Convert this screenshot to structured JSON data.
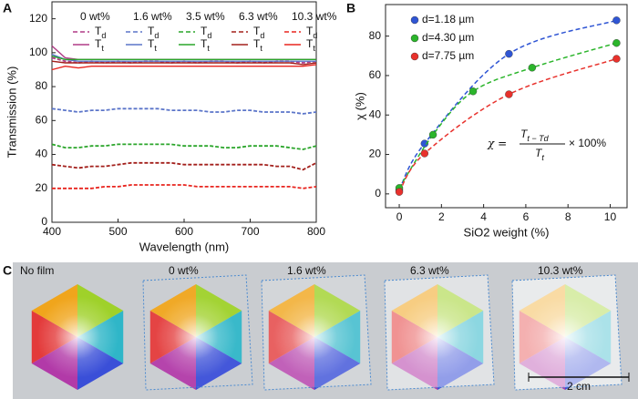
{
  "chart_data": [
    {
      "type": "line",
      "panel": "A",
      "x_label": "Wavelength (nm)",
      "y_label": "Transmission (%)",
      "x": [
        400,
        420,
        440,
        460,
        480,
        500,
        520,
        540,
        560,
        580,
        600,
        620,
        640,
        660,
        680,
        700,
        720,
        740,
        760,
        780,
        800
      ],
      "xlim": [
        400,
        800
      ],
      "xticks": [
        400,
        500,
        600,
        700,
        800
      ],
      "ylim": [
        0,
        130
      ],
      "yticks": [
        0,
        20,
        40,
        60,
        80,
        100,
        120
      ],
      "groups": [
        "0 wt%",
        "1.6 wt%",
        "3.5 wt%",
        "6.3 wt%",
        "10.3 wt%"
      ],
      "series": [
        {
          "name": "Td",
          "color": "#b03b87",
          "dashed": true,
          "values": [
            97,
            95,
            94,
            95,
            94,
            95,
            94,
            95,
            95,
            94,
            95,
            94,
            95,
            95,
            94,
            95,
            94,
            95,
            95,
            94,
            95
          ]
        },
        {
          "name": "Tt",
          "color": "#b03b87",
          "dashed": false,
          "values": [
            104,
            97,
            96,
            96,
            96,
            96,
            96,
            96,
            96,
            96,
            96,
            96,
            96,
            96,
            96,
            96,
            96,
            96,
            96,
            96,
            96
          ]
        },
        {
          "name": "Td",
          "color": "#5b75c9",
          "dashed": true,
          "values": [
            67,
            66,
            65,
            66,
            66,
            67,
            67,
            67,
            67,
            66,
            66,
            66,
            65,
            65,
            66,
            66,
            65,
            65,
            65,
            64,
            65
          ]
        },
        {
          "name": "Tt",
          "color": "#5b75c9",
          "dashed": false,
          "values": [
            99,
            96,
            95,
            95,
            95,
            95,
            95,
            95,
            95,
            95,
            95,
            95,
            95,
            95,
            95,
            95,
            95,
            95,
            95,
            95,
            95
          ]
        },
        {
          "name": "Td",
          "color": "#2aa52a",
          "dashed": true,
          "values": [
            46,
            44,
            44,
            45,
            45,
            46,
            46,
            46,
            46,
            46,
            45,
            45,
            45,
            44,
            44,
            45,
            45,
            45,
            44,
            43,
            45
          ]
        },
        {
          "name": "Tt",
          "color": "#2aa52a",
          "dashed": false,
          "values": [
            98,
            96,
            96,
            96,
            96,
            96,
            96,
            96,
            96,
            96,
            96,
            96,
            96,
            96,
            96,
            96,
            96,
            96,
            96,
            96,
            96
          ]
        },
        {
          "name": "Td",
          "color": "#a3201c",
          "dashed": true,
          "values": [
            34,
            33,
            32,
            33,
            33,
            34,
            35,
            35,
            35,
            35,
            34,
            34,
            34,
            34,
            34,
            34,
            34,
            33,
            33,
            31,
            35
          ]
        },
        {
          "name": "Tt",
          "color": "#a3201c",
          "dashed": false,
          "values": [
            95,
            94,
            94,
            94,
            94,
            94,
            94,
            94,
            94,
            94,
            94,
            94,
            94,
            94,
            94,
            94,
            94,
            94,
            94,
            93,
            94
          ]
        },
        {
          "name": "Td",
          "color": "#e8251f",
          "dashed": true,
          "values": [
            20,
            20,
            20,
            20,
            21,
            21,
            22,
            22,
            22,
            22,
            22,
            21,
            21,
            21,
            21,
            21,
            21,
            21,
            21,
            20,
            21
          ]
        },
        {
          "name": "Tt",
          "color": "#e8251f",
          "dashed": false,
          "values": [
            90,
            92,
            91,
            92,
            92,
            92,
            92,
            92,
            92,
            92,
            92,
            92,
            92,
            92,
            92,
            92,
            92,
            92,
            92,
            92,
            93
          ]
        }
      ]
    },
    {
      "type": "scatter",
      "panel": "B",
      "x_label": "SiO2 weight (%)",
      "y_label": "χ (%)",
      "xlim": [
        -0.65,
        10.8
      ],
      "xticks": [
        0,
        2,
        4,
        6,
        8,
        10
      ],
      "ylim": [
        -7,
        96
      ],
      "yticks": [
        0,
        20,
        40,
        60,
        80
      ],
      "legend": "upper left",
      "equation": {
        "lhs": "χ =",
        "numerator": "Tt − Td",
        "denominator": "Tt",
        "rhs": "× 100%"
      },
      "series": [
        {
          "name": "d=1.18 µm",
          "color": "#2f55d4",
          "x": [
            0,
            1.2,
            5.2,
            10.3
          ],
          "values": [
            2,
            25.5,
            71,
            88
          ]
        },
        {
          "name": "d=4.30 µm",
          "color": "#2bb52b",
          "x": [
            0,
            1.6,
            3.5,
            6.3,
            10.3
          ],
          "values": [
            3,
            30,
            52,
            64,
            76.5
          ]
        },
        {
          "name": "d=7.75 µm",
          "color": "#e8312c",
          "x": [
            0,
            1.2,
            5.2,
            10.3
          ],
          "values": [
            1,
            20.5,
            50.5,
            68.5
          ]
        }
      ]
    }
  ],
  "photo": {
    "panel": "C",
    "labels": [
      "No film",
      "0 wt%",
      "1.6 wt%",
      "6.3 wt%",
      "10.3 wt%"
    ],
    "scale_bar": "2 cm"
  }
}
